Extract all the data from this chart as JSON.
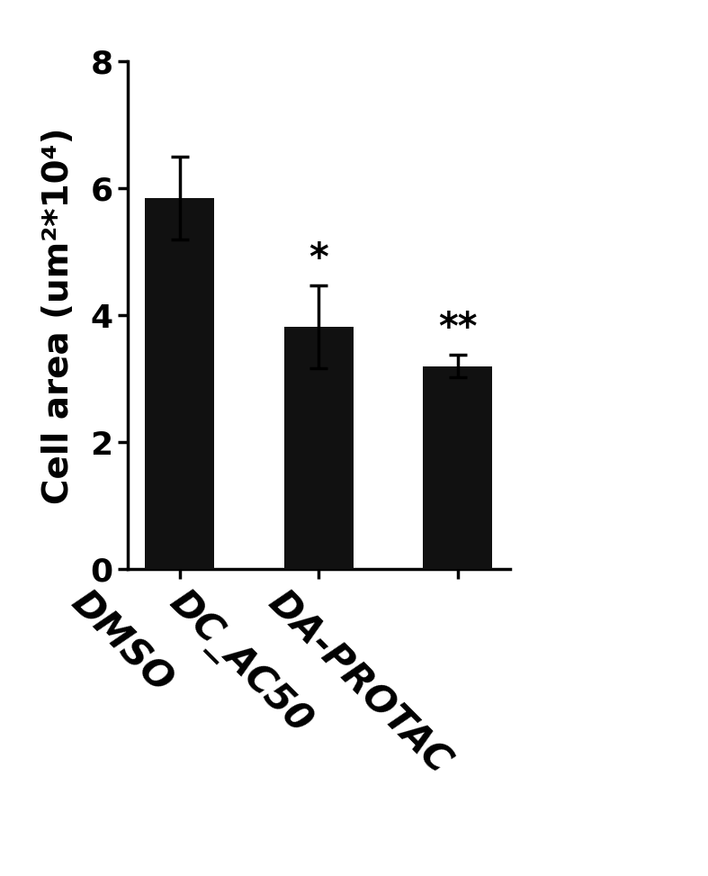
{
  "categories": [
    "DMSO",
    "DC_AC50",
    "DA-PROTAC"
  ],
  "values": [
    5.85,
    3.82,
    3.2
  ],
  "errors": [
    0.65,
    0.65,
    0.18
  ],
  "bar_color": "#111111",
  "bar_width": 0.5,
  "ylabel": "Cell area (um²*10⁴)",
  "ylim": [
    0,
    8
  ],
  "yticks": [
    0,
    2,
    4,
    6,
    8
  ],
  "significance": [
    "",
    "*",
    "**"
  ],
  "sig_fontsize": 30,
  "ylabel_fontsize": 28,
  "ytick_fontsize": 26,
  "xtick_fontsize": 30,
  "background_color": "#ffffff",
  "error_capsize": 7,
  "error_linewidth": 2.5,
  "spine_linewidth": 2.5
}
